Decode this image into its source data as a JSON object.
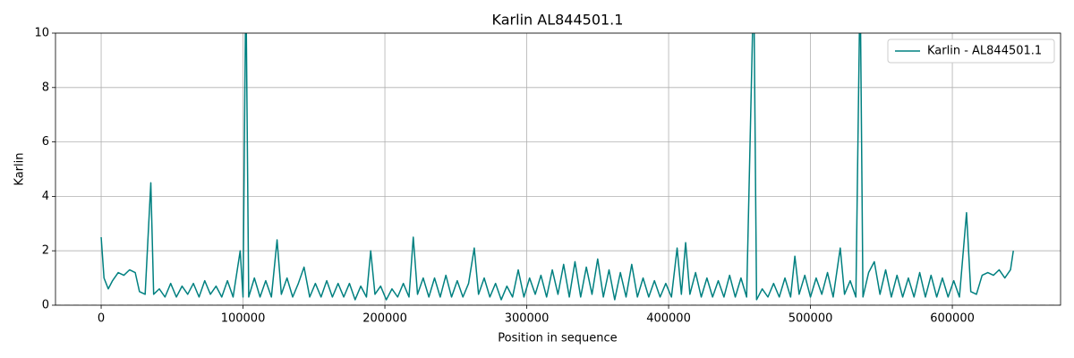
{
  "chart_data": {
    "type": "line",
    "title": "Karlin AL844501.1",
    "xlabel": "Position in sequence",
    "ylabel": "Karlin",
    "x": [
      0,
      2000,
      5000,
      8000,
      12000,
      16000,
      20000,
      24000,
      27000,
      31000,
      35000,
      37000,
      41000,
      45000,
      49000,
      53000,
      57000,
      61000,
      65000,
      69000,
      73000,
      77000,
      81000,
      85000,
      89000,
      93000,
      98000,
      100000,
      102000,
      104000,
      108000,
      112000,
      116000,
      120000,
      124000,
      127000,
      131000,
      135000,
      139000,
      143000,
      147000,
      151000,
      155000,
      159000,
      163000,
      167000,
      171000,
      175000,
      179000,
      183000,
      187000,
      190000,
      193000,
      197000,
      201000,
      205000,
      209000,
      213000,
      217000,
      220000,
      223000,
      227000,
      231000,
      235000,
      239000,
      243000,
      247000,
      251000,
      255000,
      259000,
      263000,
      266000,
      270000,
      274000,
      278000,
      282000,
      286000,
      290000,
      294000,
      298000,
      302000,
      306000,
      310000,
      314000,
      318000,
      322000,
      326000,
      330000,
      334000,
      338000,
      342000,
      346000,
      350000,
      354000,
      358000,
      362000,
      366000,
      370000,
      374000,
      378000,
      382000,
      386000,
      390000,
      394000,
      398000,
      402000,
      406000,
      409000,
      412000,
      415000,
      419000,
      423000,
      427000,
      431000,
      435000,
      439000,
      443000,
      447000,
      451000,
      455000,
      460000,
      462000,
      466000,
      470000,
      474000,
      478000,
      482000,
      486000,
      489000,
      492000,
      496000,
      500000,
      504000,
      508000,
      512000,
      516000,
      521000,
      524000,
      528000,
      532000,
      535000,
      537000,
      541000,
      545000,
      549000,
      553000,
      557000,
      561000,
      565000,
      569000,
      573000,
      577000,
      581000,
      585000,
      589000,
      593000,
      597000,
      601000,
      605000,
      610000,
      613000,
      617000,
      621000,
      625000,
      629000,
      633000,
      637000,
      641000,
      643000
    ],
    "series": [
      {
        "name": "Karlin - AL844501.1",
        "color": "#008080",
        "values": [
          2.5,
          1.0,
          0.6,
          0.9,
          1.2,
          1.1,
          1.3,
          1.2,
          0.5,
          0.4,
          4.5,
          0.4,
          0.6,
          0.3,
          0.8,
          0.3,
          0.7,
          0.4,
          0.8,
          0.3,
          0.9,
          0.4,
          0.7,
          0.3,
          0.9,
          0.3,
          2.0,
          0.3,
          12,
          0.3,
          1.0,
          0.3,
          0.9,
          0.3,
          2.4,
          0.4,
          1.0,
          0.3,
          0.8,
          1.4,
          0.3,
          0.8,
          0.3,
          0.9,
          0.3,
          0.8,
          0.3,
          0.8,
          0.2,
          0.7,
          0.3,
          2.0,
          0.4,
          0.7,
          0.2,
          0.6,
          0.3,
          0.8,
          0.3,
          2.5,
          0.4,
          1.0,
          0.3,
          1.0,
          0.3,
          1.1,
          0.3,
          0.9,
          0.3,
          0.8,
          2.1,
          0.4,
          1.0,
          0.3,
          0.8,
          0.2,
          0.7,
          0.3,
          1.3,
          0.3,
          1.0,
          0.4,
          1.1,
          0.3,
          1.3,
          0.4,
          1.5,
          0.3,
          1.6,
          0.3,
          1.4,
          0.4,
          1.7,
          0.3,
          1.3,
          0.2,
          1.2,
          0.3,
          1.5,
          0.3,
          1.0,
          0.3,
          0.9,
          0.3,
          0.8,
          0.3,
          2.1,
          0.4,
          2.3,
          0.4,
          1.2,
          0.3,
          1.0,
          0.3,
          0.9,
          0.3,
          1.1,
          0.3,
          1.0,
          0.3,
          12,
          0.2,
          0.6,
          0.3,
          0.8,
          0.3,
          1.0,
          0.3,
          1.8,
          0.4,
          1.1,
          0.3,
          1.0,
          0.4,
          1.2,
          0.3,
          2.1,
          0.4,
          0.9,
          0.3,
          12,
          0.3,
          1.2,
          1.6,
          0.4,
          1.3,
          0.3,
          1.1,
          0.3,
          1.0,
          0.3,
          1.2,
          0.3,
          1.1,
          0.3,
          1.0,
          0.3,
          0.9,
          0.3,
          3.4,
          0.5,
          0.4,
          1.1,
          1.2,
          1.1,
          1.3,
          1.0,
          1.3,
          2.0
        ]
      }
    ],
    "xlim": [
      -32200,
      676300
    ],
    "ylim": [
      0,
      10
    ],
    "xticks": [
      0,
      100000,
      200000,
      300000,
      400000,
      500000,
      600000
    ],
    "yticks": [
      0,
      2,
      4,
      6,
      8,
      10
    ],
    "reference_line": 0,
    "grid": true,
    "legend": "upper right"
  }
}
